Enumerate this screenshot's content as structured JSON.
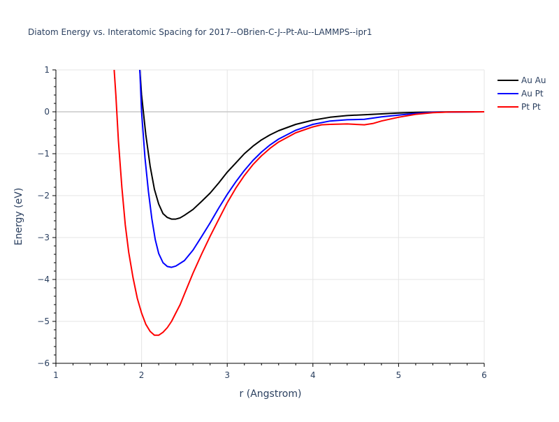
{
  "chart_data": {
    "type": "line",
    "title": "Diatom Energy vs. Interatomic Spacing for 2017--OBrien-C-J--Pt-Au--LAMMPS--ipr1",
    "xlabel": "r (Angstrom)",
    "ylabel": "Energy (eV)",
    "xlim": [
      1,
      6
    ],
    "ylim": [
      -6,
      1
    ],
    "xticks": [
      1,
      2,
      3,
      4,
      5,
      6
    ],
    "yticks": [
      1,
      0,
      -1,
      -2,
      -3,
      -4,
      -5,
      -6
    ],
    "xtick_labels": [
      "1",
      "2",
      "3",
      "4",
      "5",
      "6"
    ],
    "ytick_labels": [
      "1",
      "0",
      "−1",
      "−2",
      "−3",
      "−4",
      "−5",
      "−6"
    ],
    "grid": true,
    "legend_position": "top-right",
    "series": [
      {
        "name": "Au Au",
        "color": "#000000",
        "points": [
          [
            1.98,
            1.0
          ],
          [
            2.0,
            0.4
          ],
          [
            2.05,
            -0.55
          ],
          [
            2.1,
            -1.3
          ],
          [
            2.15,
            -1.85
          ],
          [
            2.2,
            -2.2
          ],
          [
            2.25,
            -2.43
          ],
          [
            2.3,
            -2.52
          ],
          [
            2.35,
            -2.56
          ],
          [
            2.4,
            -2.56
          ],
          [
            2.45,
            -2.53
          ],
          [
            2.5,
            -2.47
          ],
          [
            2.6,
            -2.33
          ],
          [
            2.7,
            -2.14
          ],
          [
            2.8,
            -1.94
          ],
          [
            2.9,
            -1.7
          ],
          [
            3.0,
            -1.44
          ],
          [
            3.1,
            -1.22
          ],
          [
            3.2,
            -1.0
          ],
          [
            3.3,
            -0.82
          ],
          [
            3.4,
            -0.67
          ],
          [
            3.5,
            -0.55
          ],
          [
            3.6,
            -0.45
          ],
          [
            3.8,
            -0.3
          ],
          [
            4.0,
            -0.2
          ],
          [
            4.2,
            -0.13
          ],
          [
            4.4,
            -0.09
          ],
          [
            4.6,
            -0.07
          ],
          [
            4.8,
            -0.05
          ],
          [
            5.0,
            -0.03
          ],
          [
            5.2,
            -0.015
          ],
          [
            5.5,
            -0.005
          ],
          [
            6.0,
            0.0
          ]
        ]
      },
      {
        "name": "Au Pt",
        "color": "#0000ff",
        "points": [
          [
            1.98,
            1.0
          ],
          [
            2.0,
            0.0
          ],
          [
            2.04,
            -1.1
          ],
          [
            2.08,
            -1.9
          ],
          [
            2.12,
            -2.55
          ],
          [
            2.16,
            -3.05
          ],
          [
            2.2,
            -3.38
          ],
          [
            2.25,
            -3.6
          ],
          [
            2.3,
            -3.69
          ],
          [
            2.35,
            -3.71
          ],
          [
            2.4,
            -3.68
          ],
          [
            2.5,
            -3.55
          ],
          [
            2.6,
            -3.3
          ],
          [
            2.7,
            -2.98
          ],
          [
            2.8,
            -2.65
          ],
          [
            2.9,
            -2.3
          ],
          [
            3.0,
            -1.97
          ],
          [
            3.1,
            -1.67
          ],
          [
            3.2,
            -1.4
          ],
          [
            3.3,
            -1.16
          ],
          [
            3.4,
            -0.96
          ],
          [
            3.5,
            -0.79
          ],
          [
            3.6,
            -0.65
          ],
          [
            3.8,
            -0.44
          ],
          [
            4.0,
            -0.3
          ],
          [
            4.2,
            -0.22
          ],
          [
            4.4,
            -0.19
          ],
          [
            4.6,
            -0.18
          ],
          [
            4.8,
            -0.12
          ],
          [
            5.0,
            -0.08
          ],
          [
            5.2,
            -0.04
          ],
          [
            5.4,
            -0.01
          ],
          [
            6.0,
            0.0
          ]
        ]
      },
      {
        "name": "Pt Pt",
        "color": "#ff0000",
        "points": [
          [
            1.68,
            1.0
          ],
          [
            1.7,
            0.4
          ],
          [
            1.73,
            -0.7
          ],
          [
            1.77,
            -1.8
          ],
          [
            1.81,
            -2.7
          ],
          [
            1.85,
            -3.35
          ],
          [
            1.9,
            -3.95
          ],
          [
            1.95,
            -4.45
          ],
          [
            2.0,
            -4.8
          ],
          [
            2.05,
            -5.07
          ],
          [
            2.1,
            -5.24
          ],
          [
            2.15,
            -5.33
          ],
          [
            2.2,
            -5.33
          ],
          [
            2.25,
            -5.26
          ],
          [
            2.3,
            -5.15
          ],
          [
            2.35,
            -5.0
          ],
          [
            2.4,
            -4.8
          ],
          [
            2.45,
            -4.6
          ],
          [
            2.5,
            -4.35
          ],
          [
            2.6,
            -3.85
          ],
          [
            2.7,
            -3.4
          ],
          [
            2.8,
            -2.97
          ],
          [
            2.9,
            -2.57
          ],
          [
            3.0,
            -2.17
          ],
          [
            3.1,
            -1.82
          ],
          [
            3.2,
            -1.52
          ],
          [
            3.3,
            -1.26
          ],
          [
            3.4,
            -1.05
          ],
          [
            3.5,
            -0.87
          ],
          [
            3.6,
            -0.72
          ],
          [
            3.8,
            -0.5
          ],
          [
            4.0,
            -0.36
          ],
          [
            4.1,
            -0.31
          ],
          [
            4.2,
            -0.3
          ],
          [
            4.4,
            -0.29
          ],
          [
            4.6,
            -0.31
          ],
          [
            4.7,
            -0.28
          ],
          [
            4.8,
            -0.22
          ],
          [
            5.0,
            -0.13
          ],
          [
            5.2,
            -0.06
          ],
          [
            5.4,
            -0.02
          ],
          [
            5.6,
            -0.005
          ],
          [
            6.0,
            0.0
          ]
        ]
      }
    ]
  }
}
